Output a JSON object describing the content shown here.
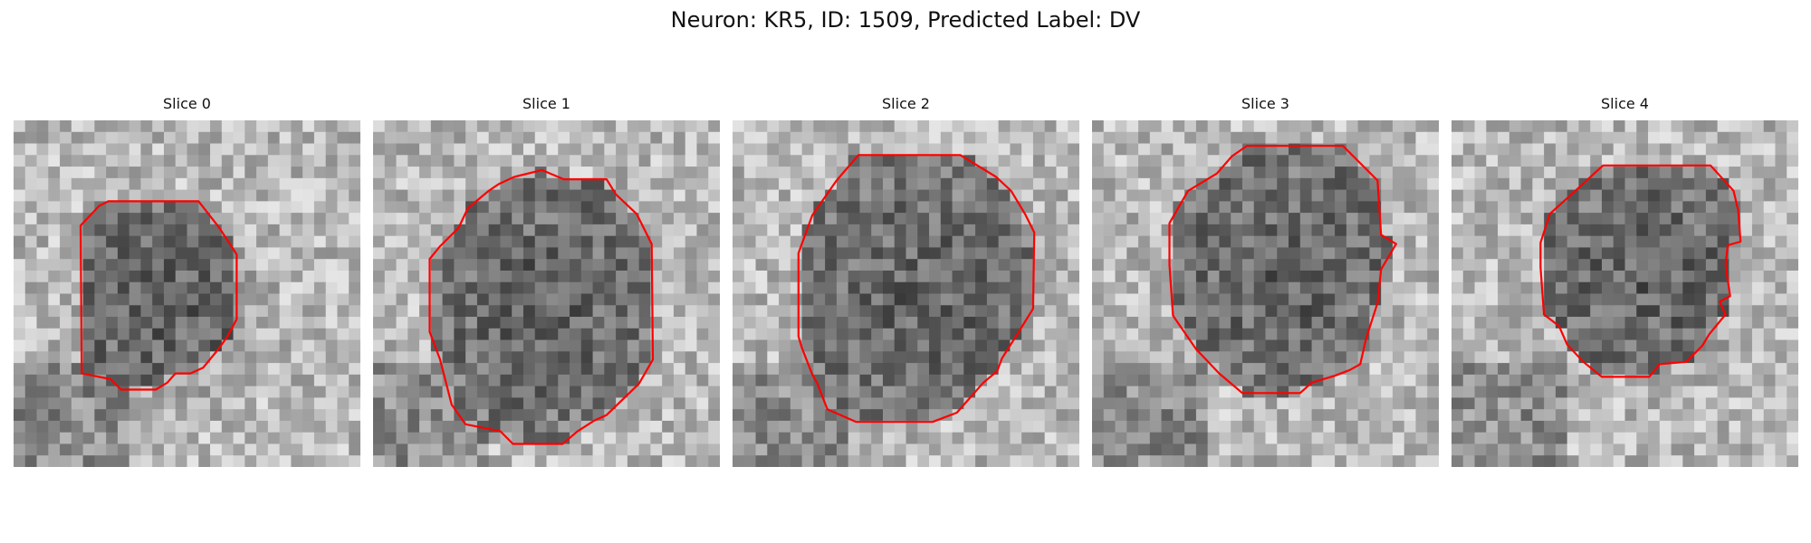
{
  "figure": {
    "title": "Neuron: KR5, ID: 1509, Predicted Label: DV",
    "contour_color": "#ff0000",
    "panels": [
      {
        "title": "Slice 0",
        "image": "grayscale microscopy slice",
        "contour": [
          [
            0.2733,
            0.2333
          ],
          [
            0.5333,
            0.2333
          ],
          [
            0.5933,
            0.31
          ],
          [
            0.6433,
            0.3867
          ],
          [
            0.6433,
            0.5733
          ],
          [
            0.6167,
            0.6233
          ],
          [
            0.5933,
            0.6567
          ],
          [
            0.5467,
            0.7133
          ],
          [
            0.51,
            0.73
          ],
          [
            0.4667,
            0.73
          ],
          [
            0.4433,
            0.7567
          ],
          [
            0.41,
            0.7767
          ],
          [
            0.31,
            0.7767
          ],
          [
            0.28,
            0.7467
          ],
          [
            0.1967,
            0.73
          ],
          [
            0.1933,
            0.3033
          ],
          [
            0.2467,
            0.2467
          ]
        ]
      },
      {
        "title": "Slice 1",
        "image": "grayscale microscopy slice",
        "contour": [
          [
            0.4067,
            0.1633
          ],
          [
            0.4867,
            0.1433
          ],
          [
            0.55,
            0.17
          ],
          [
            0.6733,
            0.17
          ],
          [
            0.7,
            0.2133
          ],
          [
            0.76,
            0.27
          ],
          [
            0.7767,
            0.3033
          ],
          [
            0.8033,
            0.3567
          ],
          [
            0.8067,
            0.69
          ],
          [
            0.7667,
            0.76
          ],
          [
            0.6733,
            0.85
          ],
          [
            0.6367,
            0.8667
          ],
          [
            0.59,
            0.8967
          ],
          [
            0.5467,
            0.9333
          ],
          [
            0.4033,
            0.9333
          ],
          [
            0.3667,
            0.8967
          ],
          [
            0.2667,
            0.8767
          ],
          [
            0.2267,
            0.82
          ],
          [
            0.1933,
            0.69
          ],
          [
            0.1633,
            0.61
          ],
          [
            0.1633,
            0.4
          ],
          [
            0.1933,
            0.3633
          ],
          [
            0.2467,
            0.31
          ],
          [
            0.2733,
            0.2533
          ],
          [
            0.3333,
            0.2033
          ],
          [
            0.3633,
            0.1833
          ]
        ]
      },
      {
        "title": "Slice 2",
        "image": "grayscale microscopy slice",
        "contour": [
          [
            0.3633,
            0.1
          ],
          [
            0.6567,
            0.1
          ],
          [
            0.76,
            0.1633
          ],
          [
            0.8033,
            0.2033
          ],
          [
            0.8433,
            0.27
          ],
          [
            0.87,
            0.3233
          ],
          [
            0.8667,
            0.5433
          ],
          [
            0.8233,
            0.6133
          ],
          [
            0.7767,
            0.6867
          ],
          [
            0.7633,
            0.7233
          ],
          [
            0.7233,
            0.7567
          ],
          [
            0.6467,
            0.8433
          ],
          [
            0.5767,
            0.87
          ],
          [
            0.3567,
            0.87
          ],
          [
            0.2733,
            0.8333
          ],
          [
            0.2433,
            0.7567
          ],
          [
            0.23,
            0.7333
          ],
          [
            0.2,
            0.6567
          ],
          [
            0.19,
            0.6233
          ],
          [
            0.19,
            0.3833
          ],
          [
            0.23,
            0.2733
          ],
          [
            0.3,
            0.1733
          ]
        ]
      },
      {
        "title": "Slice 3",
        "image": "grayscale microscopy slice",
        "contour": [
          [
            0.4467,
            0.0733
          ],
          [
            0.7233,
            0.0733
          ],
          [
            0.8233,
            0.1733
          ],
          [
            0.8333,
            0.33
          ],
          [
            0.8767,
            0.3567
          ],
          [
            0.8333,
            0.43
          ],
          [
            0.8233,
            0.5267
          ],
          [
            0.79,
            0.63
          ],
          [
            0.7733,
            0.7033
          ],
          [
            0.7433,
            0.72
          ],
          [
            0.7,
            0.7367
          ],
          [
            0.6333,
            0.7567
          ],
          [
            0.6,
            0.7867
          ],
          [
            0.4333,
            0.7867
          ],
          [
            0.3667,
            0.73
          ],
          [
            0.3,
            0.66
          ],
          [
            0.2333,
            0.5633
          ],
          [
            0.2233,
            0.4167
          ],
          [
            0.2233,
            0.2967
          ],
          [
            0.2767,
            0.2033
          ],
          [
            0.36,
            0.1533
          ],
          [
            0.4033,
            0.1033
          ]
        ]
      },
      {
        "title": "Slice 4",
        "image": "grayscale microscopy slice",
        "contour": [
          [
            0.4367,
            0.13
          ],
          [
            0.7467,
            0.13
          ],
          [
            0.8133,
            0.2033
          ],
          [
            0.8267,
            0.26
          ],
          [
            0.8333,
            0.35
          ],
          [
            0.7967,
            0.36
          ],
          [
            0.79,
            0.4167
          ],
          [
            0.8033,
            0.5067
          ],
          [
            0.7733,
            0.5233
          ],
          [
            0.79,
            0.56
          ],
          [
            0.7433,
            0.6167
          ],
          [
            0.7233,
            0.65
          ],
          [
            0.6767,
            0.6967
          ],
          [
            0.6,
            0.7033
          ],
          [
            0.57,
            0.74
          ],
          [
            0.4333,
            0.74
          ],
          [
            0.38,
            0.6967
          ],
          [
            0.3333,
            0.6467
          ],
          [
            0.31,
            0.5933
          ],
          [
            0.2667,
            0.56
          ],
          [
            0.2567,
            0.4233
          ],
          [
            0.2567,
            0.3533
          ],
          [
            0.2833,
            0.27
          ],
          [
            0.3567,
            0.2033
          ]
        ]
      }
    ]
  }
}
